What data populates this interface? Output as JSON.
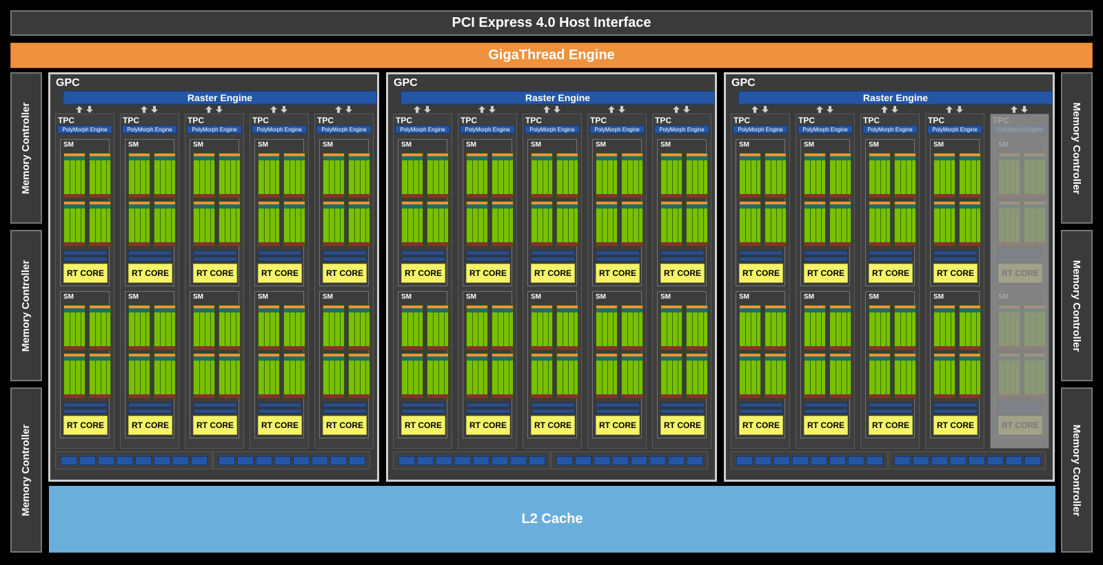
{
  "host_interface": "PCI Express 4.0 Host Interface",
  "gigathread": "GigaThread Engine",
  "memory_controller_label": "Memory Controller",
  "l2_cache": "L2 Cache",
  "gpc_label": "GPC",
  "raster_label": "Raster Engine",
  "tpc_label": "TPC",
  "polymorph_label": "PolyMorph Engine",
  "sm_label": "SM",
  "rt_label": "RT CORE",
  "gpcs": [
    {
      "disabled_tpcs": []
    },
    {
      "disabled_tpcs": []
    },
    {
      "disabled_tpcs": [
        4
      ]
    }
  ],
  "tpcs_per_gpc": 5,
  "colors": {
    "background": "#000000",
    "gigathread": "#f0913e",
    "l2_cache": "#6aaedc",
    "raster_engine": "#2556a6",
    "cuda_cores": "#78c000",
    "rt_core": "#f4f36a"
  }
}
